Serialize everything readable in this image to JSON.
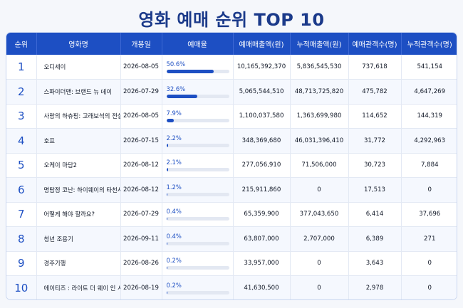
{
  "page": {
    "title": "영화 예매 순위 TOP 10"
  },
  "columns": [
    "순위",
    "영화명",
    "개봉일",
    "예매율",
    "예매매출액(원)",
    "누적매출액(원)",
    "예매관객수(명)",
    "누적관객수(명)"
  ],
  "rows": [
    {
      "rank": "1",
      "title": "오디세이",
      "release": "2026-08-05",
      "rate": "50.6%",
      "rate_value": 50.6,
      "sales": "10,165,392,370",
      "cum_sales": "5,836,545,530",
      "audience": "737,618",
      "cum_audience": "541,154"
    },
    {
      "rank": "2",
      "title": "스파이더맨: 브랜드 뉴 데이",
      "release": "2026-07-29",
      "rate": "32.6%",
      "rate_value": 32.6,
      "sales": "5,065,544,510",
      "cum_sales": "48,713,725,820",
      "audience": "475,782",
      "cum_audience": "4,647,269"
    },
    {
      "rank": "3",
      "title": "사랑의 하츄핑: 고래보석의 전설",
      "release": "2026-08-05",
      "rate": "7.9%",
      "rate_value": 7.9,
      "sales": "1,100,037,580",
      "cum_sales": "1,363,699,980",
      "audience": "114,652",
      "cum_audience": "144,319"
    },
    {
      "rank": "4",
      "title": "호프",
      "release": "2026-07-15",
      "rate": "2.2%",
      "rate_value": 2.2,
      "sales": "348,369,680",
      "cum_sales": "46,031,396,410",
      "audience": "31,772",
      "cum_audience": "4,292,963"
    },
    {
      "rank": "5",
      "title": "오케이 마담2",
      "release": "2026-08-12",
      "rate": "2.1%",
      "rate_value": 2.1,
      "sales": "277,056,910",
      "cum_sales": "71,506,000",
      "audience": "30,723",
      "cum_audience": "7,884"
    },
    {
      "rank": "6",
      "title": "명탐정 코난: 하이웨이의 타천사",
      "release": "2026-08-12",
      "rate": "1.2%",
      "rate_value": 1.2,
      "sales": "215,911,860",
      "cum_sales": "0",
      "audience": "17,513",
      "cum_audience": "0"
    },
    {
      "rank": "7",
      "title": "어떻게 해야 할까요?",
      "release": "2026-07-29",
      "rate": "0.4%",
      "rate_value": 0.4,
      "sales": "65,359,900",
      "cum_sales": "377,043,650",
      "audience": "6,414",
      "cum_audience": "37,696"
    },
    {
      "rank": "8",
      "title": "청년 조용기",
      "release": "2026-09-11",
      "rate": "0.4%",
      "rate_value": 0.4,
      "sales": "63,807,000",
      "cum_sales": "2,707,000",
      "audience": "6,389",
      "cum_audience": "271"
    },
    {
      "rank": "9",
      "title": "경주기행",
      "release": "2026-08-26",
      "rate": "0.2%",
      "rate_value": 0.2,
      "sales": "33,957,000",
      "cum_sales": "0",
      "audience": "3,643",
      "cum_audience": "0"
    },
    {
      "rank": "10",
      "title": "에이티즈 : 라이트 더 웨이 인 시네마",
      "release": "2026-08-19",
      "rate": "0.2%",
      "rate_value": 0.2,
      "sales": "41,630,500",
      "cum_sales": "0",
      "audience": "2,978",
      "cum_audience": "0"
    }
  ],
  "colors": {
    "accent": "#1d4fc3",
    "title": "#1b3a8a",
    "bar_track": "#e3e8f2"
  }
}
